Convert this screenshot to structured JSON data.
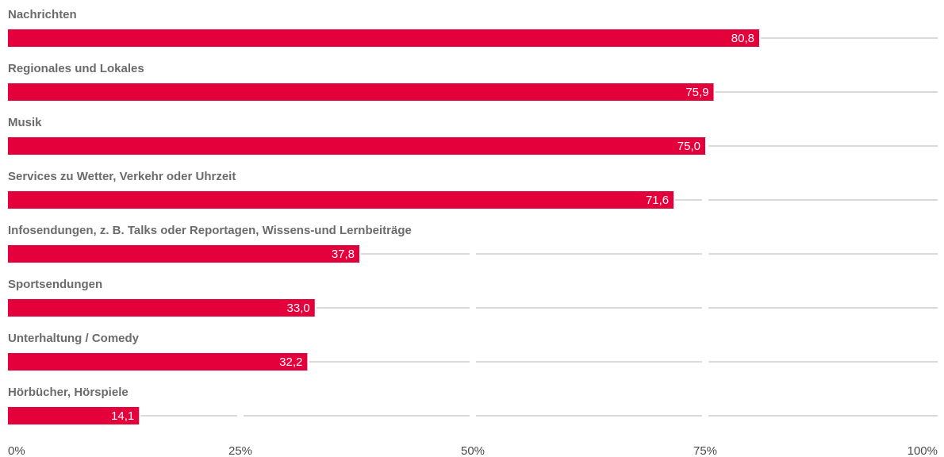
{
  "chart_data": {
    "type": "bar",
    "orientation": "horizontal",
    "categories": [
      "Nachrichten",
      "Regionales und Lokales",
      "Musik",
      "Services zu Wetter, Verkehr oder Uhrzeit",
      "Infosendungen, z. B. Talks oder Reportagen, Wissens-und Lernbeiträge",
      "Sportsendungen",
      "Unterhaltung / Comedy",
      "Hörbücher, Hörspiele"
    ],
    "values": [
      80.8,
      75.9,
      75.0,
      71.6,
      37.8,
      33.0,
      32.2,
      14.1
    ],
    "value_labels": [
      "80,8",
      "75,9",
      "75,0",
      "71,6",
      "37,8",
      "33,0",
      "32,2",
      "14,1"
    ],
    "xlim": [
      0,
      100
    ],
    "x_ticks": [
      "0%",
      "25%",
      "50%",
      "75%",
      "100%"
    ],
    "grid": true,
    "bar_color": "#e4003a",
    "label_color": "#6b6b6b",
    "grid_color": "#b4b4b4"
  }
}
